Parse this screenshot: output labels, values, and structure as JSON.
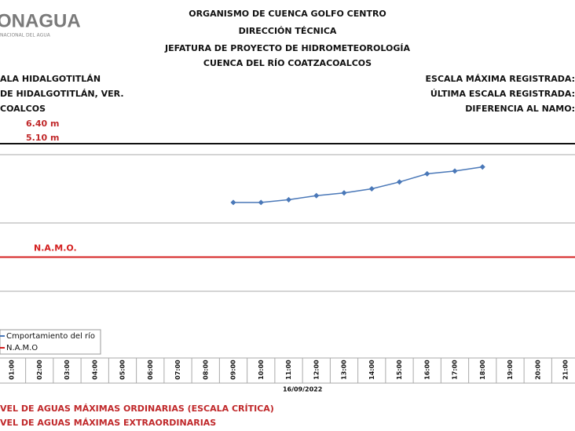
{
  "header": {
    "logo": "ONAGUA",
    "logo_subtitle": "NACIONAL DEL AGUA",
    "title_lines": [
      "ORGANISMO DE CUENCA GOLFO CENTRO",
      "DIRECCIÓN TÉCNICA",
      "JEFATURA DE PROYECTO DE HIDROMETEOROLOGÍA",
      "CUENCA DEL RÍO COATZACOALCOS"
    ],
    "left_lines": [
      "ALA HIDALGOTITLÁN",
      "DE HIDALGOTITLÁN, VER.",
      "COALCOS"
    ],
    "left_values": [
      "6.40 m",
      "5.10 m"
    ],
    "right_lines": [
      "ESCALA MÁXIMA REGISTRADA:",
      "ÚLTIMA ESCALA REGISTRADA:",
      "DIFERENCIA AL NAMO:"
    ]
  },
  "chart_data": {
    "type": "line",
    "categories": [
      "01:00",
      "02:00",
      "03:00",
      "04:00",
      "05:00",
      "06:00",
      "07:00",
      "08:00",
      "09:00",
      "10:00",
      "11:00",
      "12:00",
      "13:00",
      "14:00",
      "15:00",
      "16:00",
      "17:00",
      "18:00",
      "19:00",
      "20:00",
      "21:00"
    ],
    "x_label": "16/09/2022",
    "series": [
      {
        "name": "Cmportamiento del río",
        "color": "#4a78b8",
        "values": [
          null,
          null,
          null,
          null,
          null,
          null,
          null,
          null,
          5.65,
          5.65,
          5.67,
          5.7,
          5.72,
          5.75,
          5.8,
          5.86,
          5.88,
          5.91,
          null,
          null,
          null
        ]
      }
    ],
    "reference_lines": [
      {
        "name": "N.A.M.O",
        "label": "N.A.M.O.",
        "value": 5.25,
        "color": "#d42020"
      }
    ],
    "ylim": [
      4.5,
      6.0
    ]
  },
  "footer": [
    "VEL DE AGUAS MÁXIMAS ORDINARIAS (ESCALA CRÍTICA)",
    "VEL DE AGUAS MÁXIMAS EXTRAORDINARIAS"
  ]
}
